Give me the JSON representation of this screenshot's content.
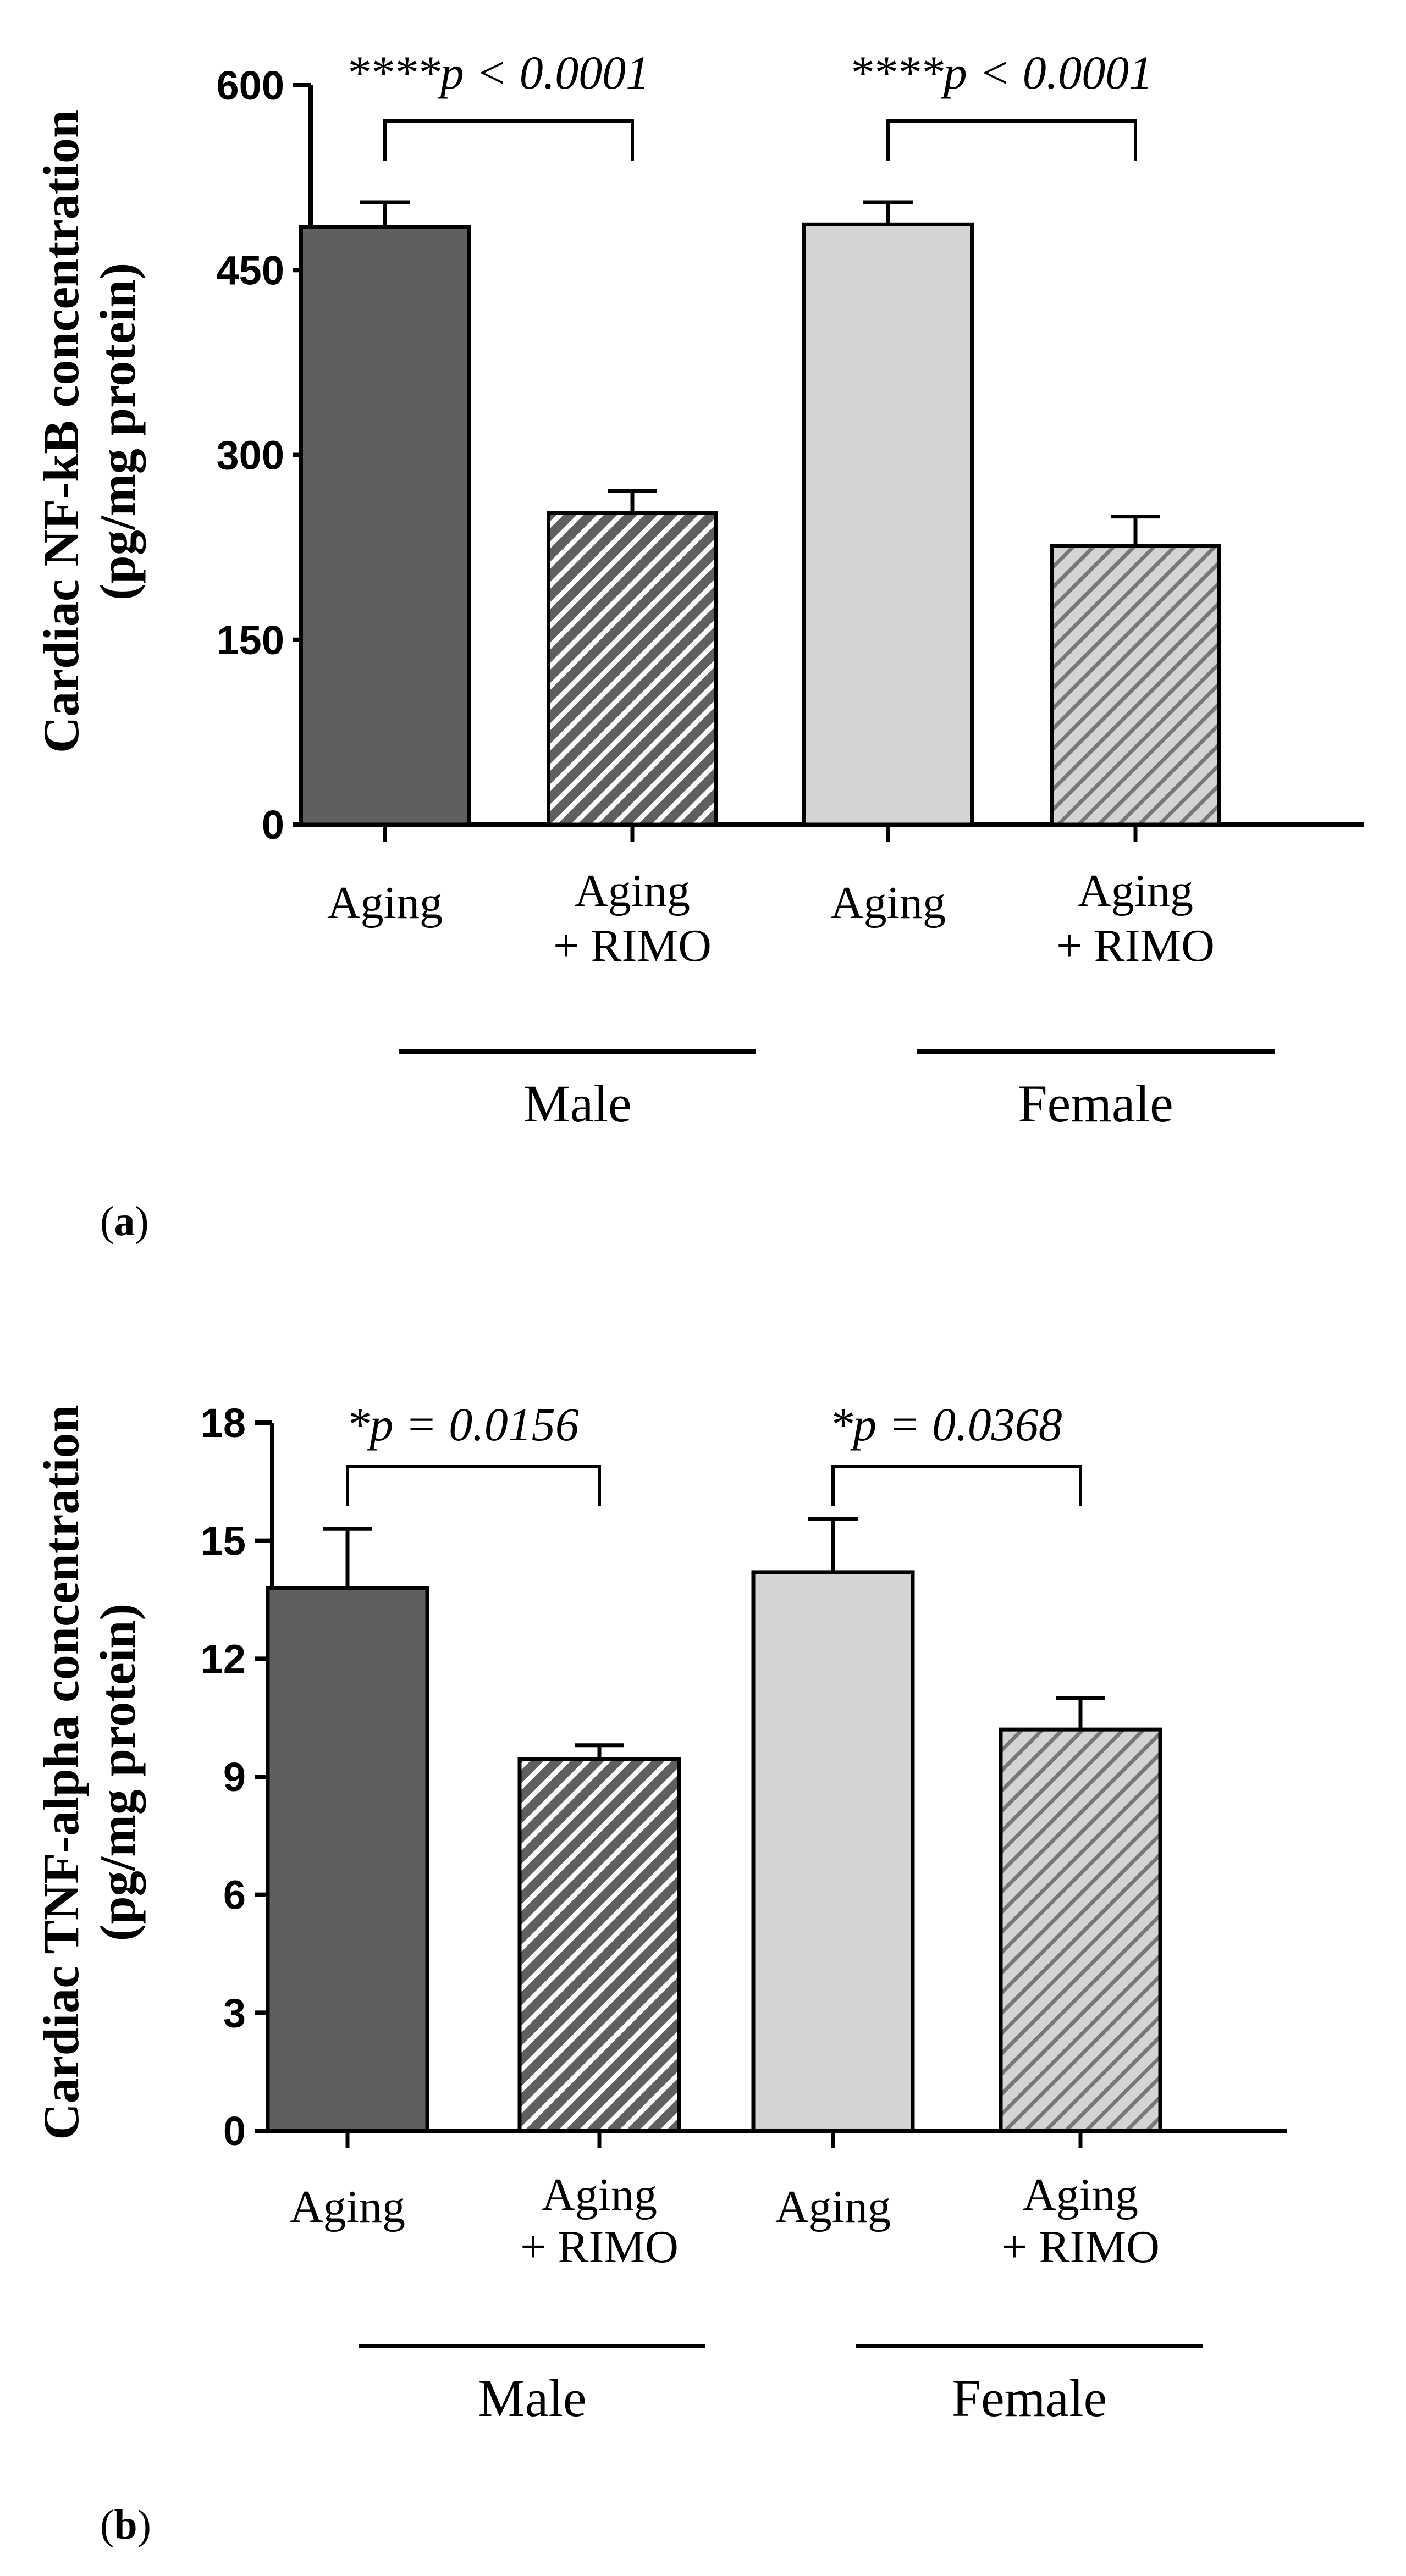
{
  "colors": {
    "male": "#5f5f5f",
    "female": "#d4d4d4",
    "axis": "#000000",
    "hatch_male": "#ffffff",
    "hatch_female": "#777777"
  },
  "chart_data": [
    {
      "type": "bar",
      "panel_label": "a",
      "ylabel": [
        "Cardiac NF-kB concentration",
        "(pg/mg protein)"
      ],
      "ylim": [
        0,
        600
      ],
      "yticks": [
        "0",
        "150",
        "300",
        "450",
        "600"
      ],
      "categories": [
        {
          "line1": "Aging",
          "line2": ""
        },
        {
          "line1": "Aging",
          "line2": "+ RIMO"
        },
        {
          "line1": "Aging",
          "line2": ""
        },
        {
          "line1": "Aging",
          "line2": "+ RIMO"
        }
      ],
      "groups": [
        "Male",
        "Female"
      ],
      "values": [
        485,
        253,
        487,
        226
      ],
      "errors": [
        20,
        18,
        18,
        24
      ],
      "significance": [
        "****p < 0.0001",
        "****p < 0.0001"
      ]
    },
    {
      "type": "bar",
      "panel_label": "b",
      "ylabel": [
        "Cardiac TNF-alpha concentration",
        "(pg/mg protein)"
      ],
      "ylim": [
        0,
        18
      ],
      "yticks": [
        "0",
        "3",
        "6",
        "9",
        "12",
        "15",
        "18"
      ],
      "categories": [
        {
          "line1": "Aging",
          "line2": ""
        },
        {
          "line1": "Aging",
          "line2": "+ RIMO"
        },
        {
          "line1": "Aging",
          "line2": ""
        },
        {
          "line1": "Aging",
          "line2": "+ RIMO"
        }
      ],
      "groups": [
        "Male",
        "Female"
      ],
      "values": [
        13.8,
        9.45,
        14.2,
        10.2
      ],
      "errors": [
        1.5,
        0.35,
        1.35,
        0.8
      ],
      "significance": [
        "*p = 0.0156",
        "*p = 0.0368"
      ]
    }
  ]
}
